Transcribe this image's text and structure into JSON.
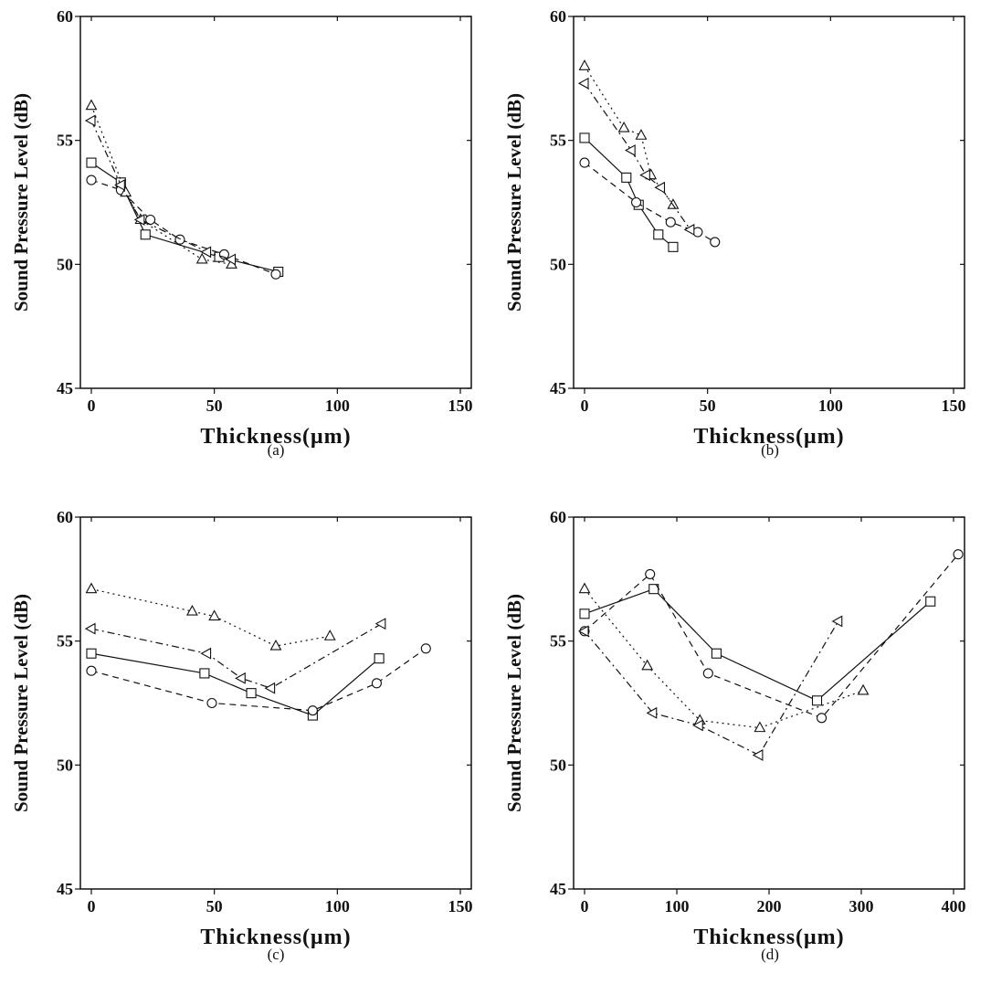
{
  "chart_data": [
    {
      "type": "line",
      "caption": "(a)",
      "xlabel": "Thickness(μm)",
      "ylabel": "Sound Pressure Level (dB)",
      "xlim": [
        0,
        150
      ],
      "ylim": [
        45,
        60
      ],
      "xticks": [
        0,
        50,
        100,
        150
      ],
      "yticks": [
        45,
        50,
        55,
        60
      ],
      "grid": false,
      "series": [
        {
          "marker": "square",
          "dash": "solid",
          "x": [
            0,
            12,
            22,
            52,
            76
          ],
          "y": [
            54.1,
            53.3,
            51.2,
            50.3,
            49.7
          ]
        },
        {
          "marker": "circle",
          "dash": "dashed",
          "x": [
            0,
            12,
            24,
            36,
            54,
            75
          ],
          "y": [
            53.4,
            53.0,
            51.8,
            51.0,
            50.4,
            49.6
          ]
        },
        {
          "marker": "triangle-up",
          "dash": "dotted",
          "x": [
            0,
            14,
            20,
            45,
            57
          ],
          "y": [
            56.4,
            52.9,
            51.8,
            50.2,
            50.0
          ]
        },
        {
          "marker": "triangle-left",
          "dash": "dashdot",
          "x": [
            0,
            12,
            20,
            47,
            57
          ],
          "y": [
            55.8,
            53.2,
            51.8,
            50.5,
            50.2
          ]
        }
      ]
    },
    {
      "type": "line",
      "caption": "(b)",
      "xlabel": "Thickness(μm)",
      "ylabel": "Sound Pressure Level (dB)",
      "xlim": [
        0,
        150
      ],
      "ylim": [
        45,
        60
      ],
      "xticks": [
        0,
        50,
        100,
        150
      ],
      "yticks": [
        45,
        50,
        55,
        60
      ],
      "grid": false,
      "series": [
        {
          "marker": "square",
          "dash": "solid",
          "x": [
            0,
            17,
            22,
            30,
            36
          ],
          "y": [
            55.1,
            53.5,
            52.4,
            51.2,
            50.7
          ]
        },
        {
          "marker": "circle",
          "dash": "dashed",
          "x": [
            0,
            21,
            35,
            46,
            53
          ],
          "y": [
            54.1,
            52.5,
            51.7,
            51.3,
            50.9
          ]
        },
        {
          "marker": "triangle-up",
          "dash": "dotted",
          "x": [
            0,
            16,
            23,
            27,
            36
          ],
          "y": [
            58.0,
            55.5,
            55.2,
            53.6,
            52.4
          ]
        },
        {
          "marker": "triangle-left",
          "dash": "dashdot",
          "x": [
            0,
            19,
            25,
            31,
            43
          ],
          "y": [
            57.3,
            54.6,
            53.6,
            53.1,
            51.4
          ]
        }
      ]
    },
    {
      "type": "line",
      "caption": "(c)",
      "xlabel": "Thickness(μm)",
      "ylabel": "Sound Pressure Level (dB)",
      "xlim": [
        0,
        150
      ],
      "ylim": [
        45,
        60
      ],
      "xticks": [
        0,
        50,
        100,
        150
      ],
      "yticks": [
        45,
        50,
        55,
        60
      ],
      "grid": false,
      "series": [
        {
          "marker": "square",
          "dash": "solid",
          "x": [
            0,
            46,
            65,
            90,
            117
          ],
          "y": [
            54.5,
            53.7,
            52.9,
            52.0,
            54.3
          ]
        },
        {
          "marker": "circle",
          "dash": "dashed",
          "x": [
            0,
            49,
            90,
            116,
            136
          ],
          "y": [
            53.8,
            52.5,
            52.2,
            53.3,
            54.7
          ]
        },
        {
          "marker": "triangle-up",
          "dash": "dotted",
          "x": [
            0,
            41,
            50,
            75,
            97
          ],
          "y": [
            57.1,
            56.2,
            56.0,
            54.8,
            55.2
          ]
        },
        {
          "marker": "triangle-left",
          "dash": "dashdot",
          "x": [
            0,
            47,
            61,
            73,
            118
          ],
          "y": [
            55.5,
            54.5,
            53.5,
            53.1,
            55.7
          ]
        }
      ]
    },
    {
      "type": "line",
      "caption": "(d)",
      "xlabel": "Thickness(μm)",
      "ylabel": "Sound Pressure Level (dB)",
      "xlim": [
        0,
        400
      ],
      "ylim": [
        45,
        60
      ],
      "xticks": [
        0,
        100,
        200,
        300,
        400
      ],
      "yticks": [
        45,
        50,
        55,
        60
      ],
      "grid": false,
      "series": [
        {
          "marker": "square",
          "dash": "solid",
          "x": [
            0,
            75,
            143,
            252,
            375
          ],
          "y": [
            56.1,
            57.1,
            54.5,
            52.6,
            56.6
          ]
        },
        {
          "marker": "circle",
          "dash": "dashed",
          "x": [
            0,
            71,
            134,
            257,
            405
          ],
          "y": [
            55.4,
            57.7,
            53.7,
            51.9,
            58.5
          ]
        },
        {
          "marker": "triangle-up",
          "dash": "dotted",
          "x": [
            0,
            68,
            125,
            190,
            302
          ],
          "y": [
            57.1,
            54.0,
            51.8,
            51.5,
            53.0
          ]
        },
        {
          "marker": "triangle-left",
          "dash": "dashdot",
          "x": [
            0,
            74,
            124,
            189,
            275
          ],
          "y": [
            55.4,
            52.1,
            51.6,
            50.4,
            55.8
          ]
        }
      ]
    }
  ]
}
